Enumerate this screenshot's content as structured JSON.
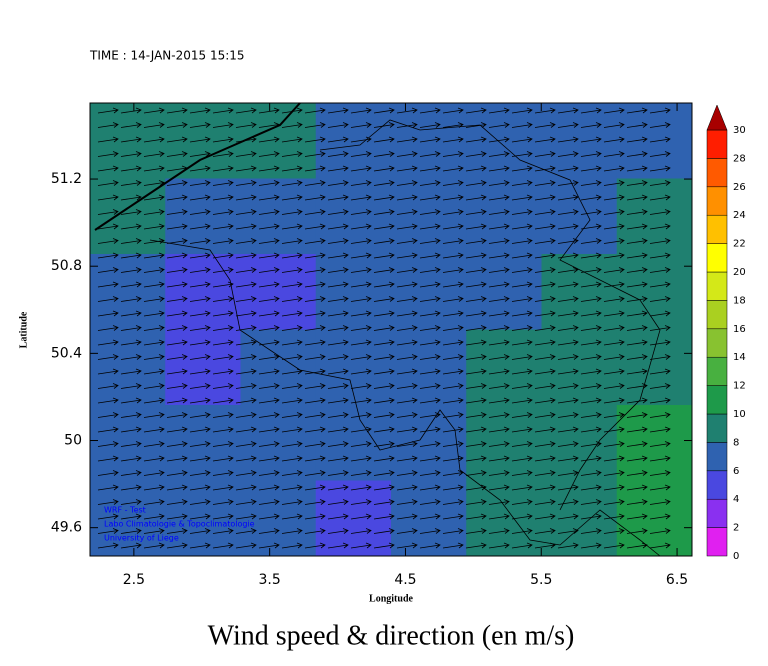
{
  "chart_data": {
    "type": "wind-map",
    "title": "TIME : 14-JAN-2015 15:15",
    "caption": "Wind speed & direction (en m/s)",
    "xlabel": "Longitude",
    "ylabel": "Latitude",
    "xlim": [
      2.177,
      6.61
    ],
    "ylim": [
      49.47,
      51.549
    ],
    "xticks": [
      2.5,
      3.5,
      4.5,
      5.5,
      6.5
    ],
    "yticks": [
      49.6,
      50.0,
      50.4,
      50.8,
      51.2
    ],
    "credits": [
      "WRF - Test",
      "Labo Climatologie & Topoclimatologie",
      "University of Liege"
    ],
    "colorbar": {
      "levels": [
        0,
        2,
        4,
        6,
        8,
        10,
        12,
        14,
        16,
        18,
        20,
        22,
        24,
        26,
        28,
        30
      ],
      "colors": [
        "#e020f0",
        "#8a30f0",
        "#4a48e0",
        "#2f62b0",
        "#1f8070",
        "#1e9a4a",
        "#48b040",
        "#88c230",
        "#aad020",
        "#d4e818",
        "#ffff00",
        "#ffc000",
        "#ff9000",
        "#ff5a00",
        "#ff1e00"
      ],
      "extend_color": "#a80000"
    },
    "speed_grid": [
      [
        9,
        9,
        8,
        7,
        7,
        7,
        7,
        7
      ],
      [
        9,
        7,
        6,
        6,
        7,
        7,
        7,
        8
      ],
      [
        6,
        5,
        5,
        6,
        7,
        7,
        8,
        9
      ],
      [
        6,
        5,
        6,
        6,
        6,
        8,
        9,
        9
      ],
      [
        6,
        6,
        6,
        6,
        7,
        8,
        9,
        10
      ],
      [
        6,
        6,
        6,
        5,
        6,
        8,
        9,
        10
      ]
    ]
  }
}
